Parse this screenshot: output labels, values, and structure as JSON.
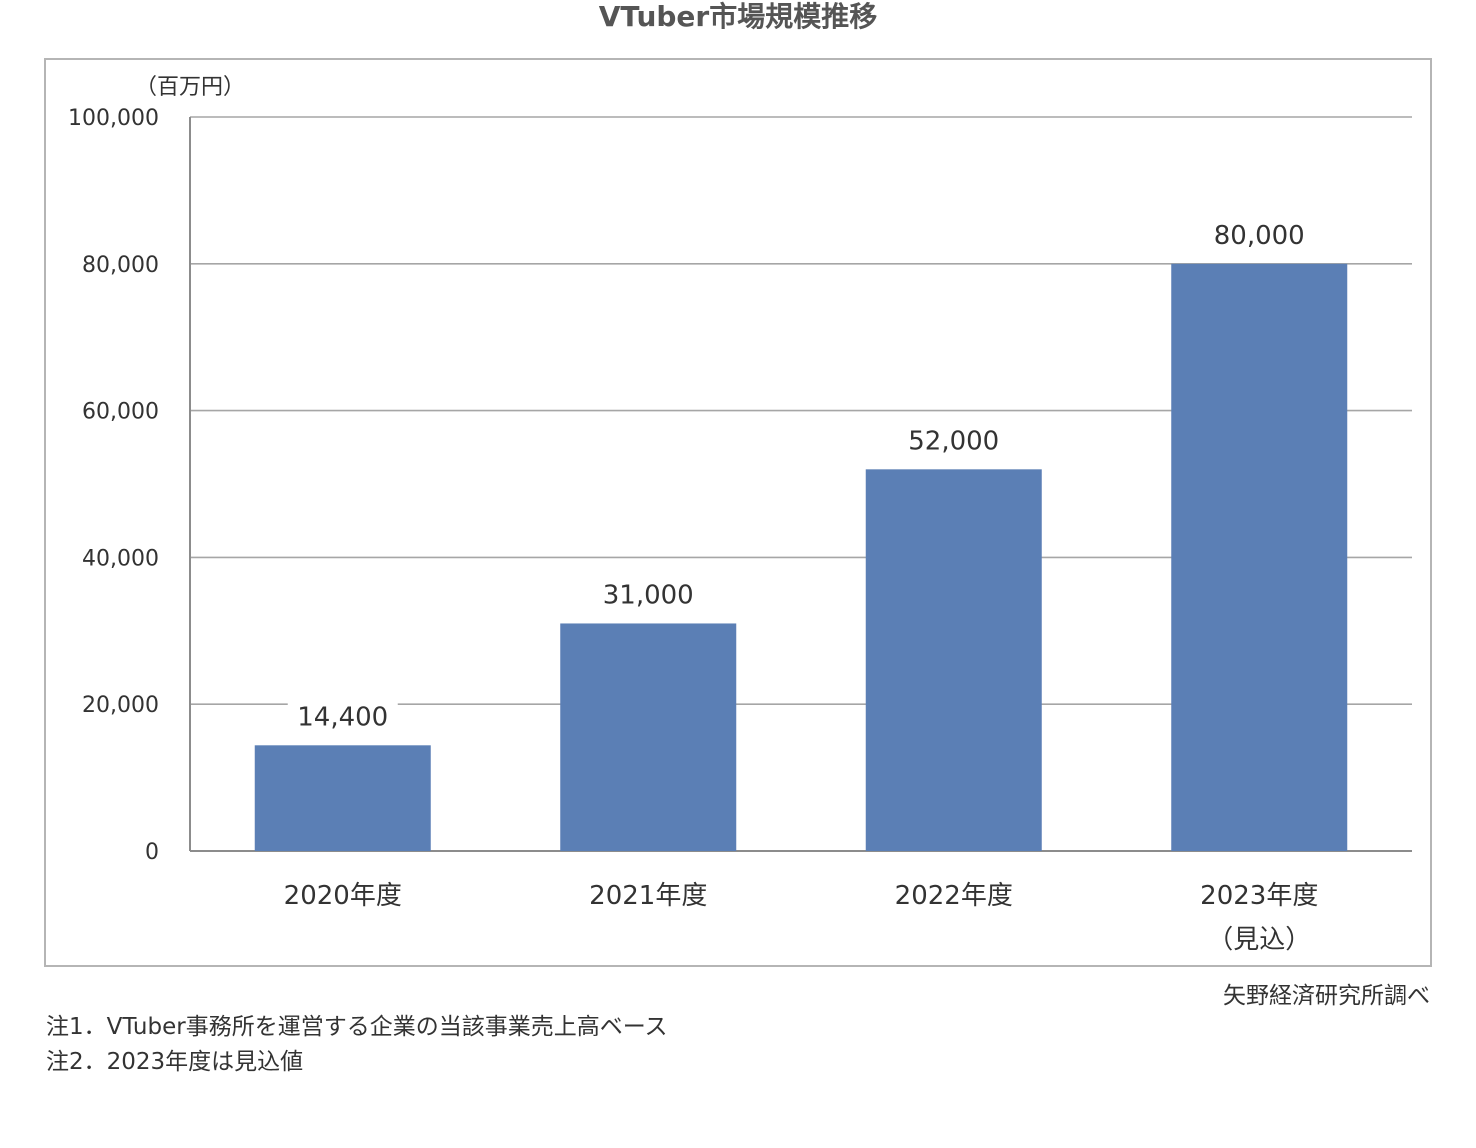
{
  "title": "VTuber市場規模推移",
  "chart_data": {
    "type": "bar",
    "categories": [
      "2020年度",
      "2021年度",
      "2022年度",
      "2023年度"
    ],
    "category_sublabels": [
      "",
      "",
      "",
      "（見込）"
    ],
    "values": [
      14400,
      31000,
      52000,
      80000
    ],
    "value_labels": [
      "14,400",
      "31,000",
      "52,000",
      "80,000"
    ],
    "unit_label": "（百万円）",
    "ylim": [
      0,
      100000
    ],
    "yticks": [
      0,
      20000,
      40000,
      60000,
      80000,
      100000
    ],
    "ytick_labels": [
      "0",
      "20,000",
      "40,000",
      "60,000",
      "80,000",
      "100,000"
    ],
    "grid": true,
    "bar_color": "#5b7fb5",
    "grid_color": "#a6a6a6",
    "axis_color": "#8c8c8c"
  },
  "source": "矢野経済研究所調べ",
  "notes": [
    "注1．VTuber事務所を運営する企業の当該事業売上高ベース",
    "注2．2023年度は見込値"
  ]
}
